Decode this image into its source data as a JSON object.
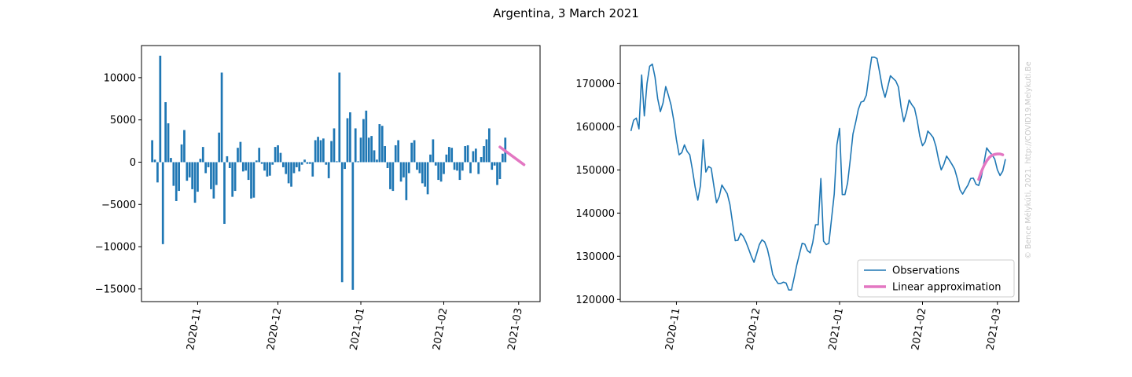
{
  "title": "Argentina, 3 March 2021",
  "watermark": "© Bence Mélykúti, 2021. http://COVID19.Melykuti.Be",
  "colors": {
    "observations": "#1f77b4",
    "approximation": "#e377c2",
    "watermark": "#c8c8c8"
  },
  "chart_data": [
    {
      "type": "bar",
      "title": "",
      "xlabel": "",
      "ylabel": "",
      "x_type": "date",
      "xlim": [
        "2020-10-11",
        "2021-03-09"
      ],
      "ylim": [
        -16500,
        13800
      ],
      "x_ticks": [
        "2020-11-01",
        "2020-12-01",
        "2021-01-01",
        "2021-02-01",
        "2021-03-01"
      ],
      "x_tick_labels": [
        "2020-11",
        "2020-12",
        "2021-01",
        "2021-02",
        "2021-03"
      ],
      "y_ticks": [
        -15000,
        -10000,
        -5000,
        0,
        5000,
        10000
      ],
      "y_tick_labels": [
        "−15000",
        "−10000",
        "−5000",
        "0",
        "5000",
        "10000"
      ],
      "x_start": "2020-10-15",
      "values": [
        2600,
        300,
        -2400,
        12600,
        -9700,
        7100,
        4600,
        500,
        -2800,
        -4600,
        -3400,
        2100,
        3800,
        -2200,
        -1800,
        -3200,
        -4800,
        -3500,
        400,
        1800,
        -1300,
        -600,
        -3200,
        -4300,
        -2700,
        3500,
        10600,
        -7300,
        700,
        -700,
        -4100,
        -3400,
        1700,
        2400,
        -1100,
        -1000,
        -2100,
        -4300,
        -4200,
        200,
        1700,
        -200,
        -1000,
        -1700,
        -1600,
        -300,
        1800,
        2000,
        1100,
        -600,
        -1400,
        -2500,
        -2900,
        -1300,
        -600,
        -1100,
        -300,
        300,
        -200,
        -200,
        -1700,
        2600,
        3000,
        2600,
        2800,
        -300,
        -1900,
        2500,
        4000,
        100,
        10600,
        -14200,
        -800,
        5200,
        5900,
        -15100,
        4000,
        100,
        2900,
        5100,
        6100,
        2900,
        3100,
        1400,
        300,
        4500,
        4300,
        1900,
        -700,
        -3200,
        -3400,
        2000,
        2600,
        -2300,
        -1800,
        -4500,
        -1300,
        2300,
        2600,
        -900,
        -1300,
        -2500,
        -2900,
        -3800,
        900,
        2700,
        -400,
        -2100,
        -2300,
        -1400,
        900,
        1800,
        1700,
        -900,
        -1000,
        -2100,
        -1000,
        1900,
        2000,
        -1300,
        1300,
        1600,
        -1400,
        600,
        1900,
        2700,
        4000,
        -900,
        -400,
        -2700,
        -2000,
        1000,
        2900
      ],
      "approximation": [
        {
          "x": "2021-02-22",
          "y": 1800
        },
        {
          "x": "2021-03-03",
          "y": -300
        }
      ]
    },
    {
      "type": "line",
      "title": "",
      "xlabel": "",
      "ylabel": "",
      "x_type": "date",
      "xlim": [
        "2020-10-11",
        "2021-03-09"
      ],
      "ylim": [
        119500,
        178800
      ],
      "x_ticks": [
        "2020-11-01",
        "2020-12-01",
        "2021-01-01",
        "2021-02-01",
        "2021-03-01"
      ],
      "x_tick_labels": [
        "2020-11",
        "2020-12",
        "2021-01",
        "2021-02",
        "2021-03"
      ],
      "y_ticks": [
        120000,
        130000,
        140000,
        150000,
        160000,
        170000
      ],
      "y_tick_labels": [
        "120000",
        "130000",
        "140000",
        "150000",
        "160000",
        "170000"
      ],
      "legend": {
        "position": "lower-right",
        "entries": [
          "Observations",
          "Linear approximation"
        ]
      },
      "series": [
        {
          "name": "Observations",
          "x_start": "2020-10-15",
          "values": [
            159000,
            161500,
            162000,
            159500,
            172000,
            162500,
            170000,
            174000,
            174500,
            171500,
            166500,
            163500,
            165500,
            169300,
            167300,
            165000,
            161500,
            157000,
            153500,
            154000,
            155800,
            154300,
            153500,
            150000,
            146000,
            143000,
            146400,
            157000,
            149500,
            150800,
            150400,
            146300,
            142400,
            143800,
            146500,
            145500,
            144500,
            142000,
            137700,
            133600,
            133700,
            135300,
            134600,
            133300,
            131700,
            130000,
            128600,
            130600,
            132700,
            133800,
            133300,
            131700,
            129000,
            125800,
            124600,
            123700,
            123700,
            124000,
            123800,
            122200,
            122200,
            125000,
            128000,
            130500,
            133000,
            132800,
            131300,
            130800,
            133300,
            137300,
            137300,
            148000,
            133500,
            132700,
            133000,
            138700,
            144400,
            155800,
            159600,
            144300,
            144300,
            147000,
            152400,
            158300,
            161000,
            164000,
            165700,
            165900,
            167300,
            171900,
            176100,
            176100,
            175800,
            172500,
            169000,
            166800,
            169200,
            171800,
            171200,
            170600,
            169200,
            164500,
            161200,
            163300,
            166200,
            165100,
            164300,
            161500,
            157800,
            155600,
            156500,
            159000,
            158300,
            157500,
            155500,
            152400,
            150000,
            151300,
            153200,
            152300,
            151300,
            150200,
            148000,
            145400,
            144400,
            145500,
            146500,
            148000,
            148100,
            146700,
            146400,
            148400,
            151700,
            155100,
            154200,
            153500,
            152500,
            150000,
            148700,
            149700,
            152500
          ]
        },
        {
          "name": "Linear approximation",
          "x": [
            "2021-02-22",
            "2021-02-23",
            "2021-02-24",
            "2021-02-25",
            "2021-02-26",
            "2021-02-27",
            "2021-02-28",
            "2021-03-01",
            "2021-03-02",
            "2021-03-03"
          ],
          "values": [
            147800,
            149600,
            151000,
            152100,
            152900,
            153400,
            153600,
            153700,
            153700,
            153500
          ]
        }
      ]
    }
  ]
}
